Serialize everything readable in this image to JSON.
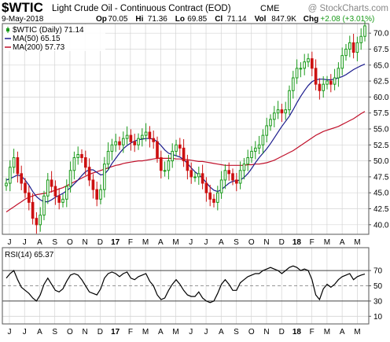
{
  "header": {
    "symbol": "$WTIC",
    "description": "Light Crude Oil - Continuous Contract (EOD)",
    "exchange": "CME",
    "watermark": "@ StockCharts.com",
    "date": "9-May-2018",
    "quote": [
      {
        "label": "Op",
        "value": "70.05"
      },
      {
        "label": "Hi",
        "value": "71.36"
      },
      {
        "label": "Lo",
        "value": "69.85"
      },
      {
        "label": "Cl",
        "value": "71.14"
      },
      {
        "label": "Vol",
        "value": "847.9K"
      },
      {
        "label": "Chg",
        "value": "+2.08 (+3.01%)"
      }
    ],
    "change_direction": "up"
  },
  "colors": {
    "price_up": "#1a9a1a",
    "price_down": "#cc1111",
    "ma50": "#1a1a8c",
    "ma200": "#c0102a",
    "rsi": "#000000",
    "grid": "#d4d4d4"
  },
  "legend": [
    {
      "label": "$WTIC (Daily) 71.14",
      "marker": "candle"
    },
    {
      "label": "MA(50) 65.15",
      "marker": "line",
      "color": "#1a1a8c"
    },
    {
      "label": "MA(200) 57.73",
      "marker": "line",
      "color": "#c0102a"
    }
  ],
  "rsi_panel": {
    "label": "RSI(14) 65.37",
    "levels": [
      70,
      30
    ],
    "ticks": [
      70,
      50,
      30,
      10
    ],
    "ylim": [
      0,
      100
    ]
  },
  "chart_data": [
    {
      "type": "line",
      "title": "$WTIC Light Crude Oil - Continuous Contract (EOD) CME",
      "xlabel": "",
      "ylabel": "",
      "x_tick_labels": [
        "J",
        "J",
        "A",
        "S",
        "O",
        "N",
        "D",
        "17",
        "F",
        "M",
        "A",
        "M",
        "J",
        "J",
        "A",
        "S",
        "O",
        "N",
        "D",
        "18",
        "F",
        "M",
        "A",
        "M"
      ],
      "ylim": [
        38.5,
        71.5
      ],
      "y_ticks": [
        40.0,
        42.5,
        45.0,
        47.5,
        50.0,
        52.5,
        55.0,
        57.5,
        60.0,
        62.5,
        65.0,
        67.5,
        70.0
      ],
      "grid": true,
      "legend_position": "top-left",
      "series": [
        {
          "name": "$WTIC (Daily)",
          "style": "candlestick",
          "values": [
            46.5,
            49.0,
            50.5,
            48.0,
            46.5,
            45.0,
            43.5,
            41.0,
            40.0,
            41.5,
            44.5,
            47.0,
            46.0,
            44.5,
            43.5,
            44.0,
            46.0,
            48.5,
            50.5,
            51.0,
            50.5,
            49.0,
            47.0,
            45.5,
            44.0,
            45.5,
            49.5,
            51.5,
            52.5,
            53.0,
            52.5,
            53.5,
            54.0,
            53.0,
            52.5,
            53.5,
            54.0,
            54.5,
            53.5,
            53.0,
            50.5,
            48.5,
            48.5,
            50.0,
            51.5,
            52.5,
            52.0,
            50.0,
            48.5,
            47.5,
            47.5,
            48.0,
            46.5,
            45.0,
            44.0,
            43.5,
            45.0,
            47.0,
            48.5,
            48.0,
            47.0,
            46.5,
            48.5,
            49.5,
            50.5,
            51.5,
            52.0,
            52.5,
            54.0,
            55.5,
            56.5,
            57.5,
            58.0,
            57.5,
            58.0,
            61.0,
            63.0,
            64.5,
            64.5,
            65.5,
            66.0,
            64.5,
            62.0,
            61.0,
            62.0,
            62.5,
            62.0,
            63.0,
            64.5,
            66.5,
            67.5,
            68.5,
            67.0,
            68.5,
            69.5,
            71.14
          ]
        },
        {
          "name": "MA(50)",
          "values": [
            47.0,
            47.2,
            47.5,
            47.8,
            47.6,
            47.0,
            46.2,
            45.2,
            44.4,
            43.9,
            43.6,
            43.6,
            43.9,
            44.3,
            44.6,
            44.9,
            45.3,
            45.8,
            46.4,
            47.0,
            47.7,
            48.3,
            48.6,
            48.6,
            48.2,
            47.8,
            47.9,
            48.6,
            49.6,
            50.4,
            51.2,
            51.9,
            52.4,
            52.8,
            53.1,
            53.3,
            53.4,
            53.5,
            53.5,
            53.4,
            53.0,
            52.4,
            51.7,
            51.2,
            51.0,
            50.8,
            50.6,
            50.2,
            49.6,
            48.9,
            48.3,
            47.8,
            47.3,
            46.6,
            45.9,
            45.4,
            45.2,
            45.5,
            46.0,
            46.5,
            46.8,
            46.9,
            47.0,
            47.4,
            48.0,
            48.8,
            49.7,
            50.5,
            51.2,
            51.9,
            52.7,
            53.6,
            54.5,
            55.4,
            56.2,
            57.0,
            58.0,
            59.1,
            60.1,
            61.0,
            61.8,
            62.4,
            62.7,
            62.8,
            62.8,
            62.7,
            62.7,
            62.8,
            63.0,
            63.2,
            63.5,
            63.9,
            64.3,
            64.6,
            64.9,
            65.15
          ]
        },
        {
          "name": "MA(200)",
          "values": [
            42.0,
            42.4,
            42.8,
            43.2,
            43.6,
            44.0,
            44.3,
            44.5,
            44.7,
            44.8,
            44.9,
            45.0,
            45.2,
            45.4,
            45.6,
            45.8,
            46.1,
            46.4,
            46.7,
            47.0,
            47.3,
            47.6,
            47.9,
            48.1,
            48.3,
            48.5,
            48.7,
            48.9,
            49.1,
            49.3,
            49.4,
            49.6,
            49.7,
            49.8,
            49.9,
            50.0,
            50.0,
            50.1,
            50.2,
            50.3,
            50.4,
            50.4,
            50.4,
            50.4,
            50.4,
            50.3,
            50.3,
            50.2,
            50.2,
            50.1,
            50.0,
            49.9,
            49.9,
            49.8,
            49.7,
            49.6,
            49.5,
            49.4,
            49.3,
            49.3,
            49.3,
            49.3,
            49.3,
            49.3,
            49.4,
            49.4,
            49.5,
            49.5,
            49.6,
            49.7,
            49.9,
            50.1,
            50.4,
            50.7,
            51.0,
            51.3,
            51.6,
            52.0,
            52.4,
            52.8,
            53.2,
            53.6,
            54.0,
            54.3,
            54.6,
            54.8,
            55.0,
            55.2,
            55.4,
            55.7,
            56.0,
            56.3,
            56.6,
            57.0,
            57.4,
            57.73
          ]
        }
      ]
    },
    {
      "type": "line",
      "title": "",
      "xlabel": "",
      "ylabel": "",
      "x_tick_labels": [
        "J",
        "J",
        "A",
        "S",
        "O",
        "N",
        "D",
        "17",
        "F",
        "M",
        "A",
        "M",
        "J",
        "J",
        "A",
        "S",
        "O",
        "N",
        "D",
        "18",
        "F",
        "M",
        "A",
        "M"
      ],
      "ylim": [
        0,
        100
      ],
      "y_ticks": [
        70,
        50,
        30,
        10
      ],
      "grid": true,
      "series": [
        {
          "name": "RSI(14)",
          "values": [
            60,
            66,
            70,
            58,
            48,
            44,
            40,
            34,
            30,
            38,
            52,
            60,
            52,
            44,
            42,
            46,
            56,
            64,
            66,
            64,
            58,
            50,
            42,
            40,
            38,
            46,
            60,
            66,
            68,
            66,
            62,
            66,
            68,
            60,
            58,
            62,
            64,
            66,
            56,
            50,
            38,
            32,
            34,
            44,
            52,
            58,
            52,
            44,
            38,
            36,
            36,
            42,
            34,
            30,
            28,
            30,
            40,
            52,
            58,
            52,
            44,
            44,
            54,
            58,
            62,
            64,
            66,
            66,
            70,
            72,
            74,
            72,
            70,
            66,
            70,
            74,
            76,
            74,
            70,
            72,
            70,
            58,
            38,
            32,
            46,
            52,
            48,
            52,
            58,
            62,
            64,
            66,
            58,
            62,
            64,
            65.37
          ]
        }
      ]
    }
  ]
}
